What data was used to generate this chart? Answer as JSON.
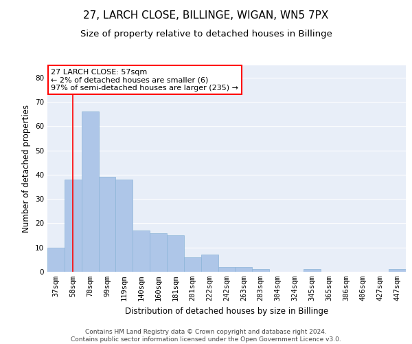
{
  "title1": "27, LARCH CLOSE, BILLINGE, WIGAN, WN5 7PX",
  "title2": "Size of property relative to detached houses in Billinge",
  "xlabel": "Distribution of detached houses by size in Billinge",
  "ylabel": "Number of detached properties",
  "categories": [
    "37sqm",
    "58sqm",
    "78sqm",
    "99sqm",
    "119sqm",
    "140sqm",
    "160sqm",
    "181sqm",
    "201sqm",
    "222sqm",
    "242sqm",
    "263sqm",
    "283sqm",
    "304sqm",
    "324sqm",
    "345sqm",
    "365sqm",
    "386sqm",
    "406sqm",
    "427sqm",
    "447sqm"
  ],
  "values": [
    10,
    38,
    66,
    39,
    38,
    17,
    16,
    15,
    6,
    7,
    2,
    2,
    1,
    0,
    0,
    1,
    0,
    0,
    0,
    0,
    1
  ],
  "bar_color": "#aec6e8",
  "bar_edge_color": "#8cb4d8",
  "vline_x": 1,
  "annotation_box_text": "27 LARCH CLOSE: 57sqm\n← 2% of detached houses are smaller (6)\n97% of semi-detached houses are larger (235) →",
  "ylim": [
    0,
    85
  ],
  "yticks": [
    0,
    10,
    20,
    30,
    40,
    50,
    60,
    70,
    80
  ],
  "bg_color": "#e8eef8",
  "grid_color": "#ffffff",
  "footnote": "Contains HM Land Registry data © Crown copyright and database right 2024.\nContains public sector information licensed under the Open Government Licence v3.0.",
  "title1_fontsize": 11,
  "title2_fontsize": 9.5,
  "xlabel_fontsize": 8.5,
  "ylabel_fontsize": 8.5,
  "tick_fontsize": 7.5,
  "annot_fontsize": 8,
  "footnote_fontsize": 6.5
}
